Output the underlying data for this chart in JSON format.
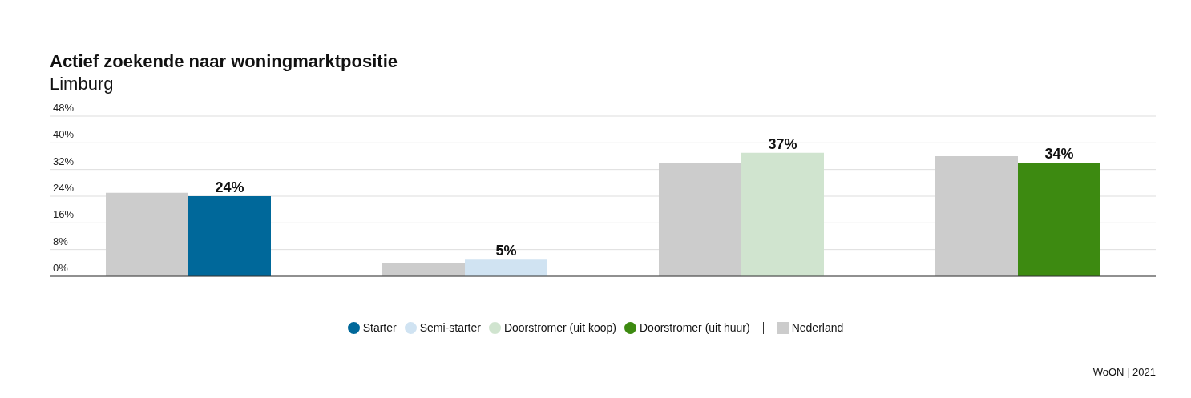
{
  "chart_data": {
    "type": "bar",
    "title": "Actief zoekende naar woningmarktpositie",
    "subtitle": "Limburg",
    "categories": [
      null,
      null,
      null,
      null
    ],
    "series": [
      {
        "name": "Nederland",
        "color": "#cccccc",
        "values": [
          25,
          4,
          34,
          36
        ]
      },
      {
        "name": "Starter",
        "color": "#00689a",
        "values": [
          24,
          null,
          null,
          null
        ],
        "value_labels": [
          "24%",
          null,
          null,
          null
        ]
      },
      {
        "name": "Semi-starter",
        "color": "#d0e3f2",
        "values": [
          null,
          5,
          null,
          null
        ],
        "value_labels": [
          null,
          "5%",
          null,
          null
        ]
      },
      {
        "name": "Doorstromer (uit koop)",
        "color": "#d0e4cf",
        "values": [
          null,
          null,
          37,
          null
        ],
        "value_labels": [
          null,
          null,
          "37%",
          null
        ]
      },
      {
        "name": "Doorstromer (uit huur)",
        "color": "#3d8a11",
        "values": [
          null,
          null,
          null,
          34
        ],
        "value_labels": [
          null,
          null,
          null,
          "34%"
        ]
      }
    ],
    "ylim": [
      0,
      48
    ],
    "yticks": [
      {
        "value": 0,
        "label": "0%"
      },
      {
        "value": 8,
        "label": "8%"
      },
      {
        "value": 16,
        "label": "16%"
      },
      {
        "value": 24,
        "label": "24%"
      },
      {
        "value": 32,
        "label": "32%"
      },
      {
        "value": 40,
        "label": "40%"
      },
      {
        "value": 48,
        "label": "48%"
      }
    ],
    "grid": "y",
    "legend": "bottom",
    "tick_labels": "y",
    "annotations": [
      "WoON | 2021"
    ]
  }
}
